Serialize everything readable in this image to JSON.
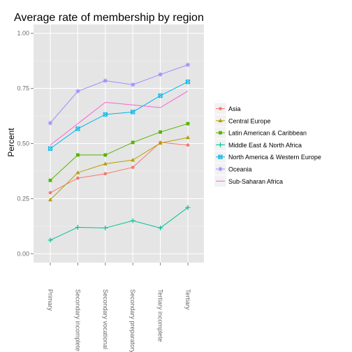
{
  "chart_data": {
    "type": "line",
    "title": "Average rate of membership by region",
    "xlabel": "",
    "ylabel": "Percent",
    "categories": [
      "Primary",
      "Secondary incomplete",
      "Secondary vocational",
      "Secondary preparatory",
      "Tertiary incomplete",
      "Tertiary"
    ],
    "ylim": [
      -0.04,
      1.04
    ],
    "yticks": [
      0.0,
      0.25,
      0.5,
      0.75,
      1.0
    ],
    "ytick_labels": [
      "0.00",
      "0.25",
      "0.50",
      "0.75",
      "1.00"
    ],
    "grid": true,
    "legend_position": "right",
    "series": [
      {
        "name": "Asia",
        "color": "#F8766D",
        "marker": "circle",
        "values": [
          0.277,
          0.343,
          0.363,
          0.392,
          0.505,
          0.493
        ]
      },
      {
        "name": "Central Europe",
        "color": "#B79F00",
        "marker": "triangle",
        "values": [
          0.245,
          0.368,
          0.408,
          0.425,
          0.502,
          0.527
        ]
      },
      {
        "name": "Latin American & Caribbean",
        "color": "#53B400",
        "marker": "square",
        "values": [
          0.333,
          0.448,
          0.448,
          0.505,
          0.552,
          0.59
        ]
      },
      {
        "name": "Middle East & North Africa",
        "color": "#00C094",
        "marker": "plus",
        "values": [
          0.062,
          0.12,
          0.117,
          0.15,
          0.117,
          0.21
        ]
      },
      {
        "name": "North America & Western Europe",
        "color": "#00B6EB",
        "marker": "squarecross",
        "values": [
          0.477,
          0.567,
          0.632,
          0.643,
          0.717,
          0.78
        ]
      },
      {
        "name": "Oceania",
        "color": "#A58AFF",
        "marker": "asterisk",
        "values": [
          0.593,
          0.737,
          0.785,
          0.767,
          0.813,
          0.857
        ]
      },
      {
        "name": "Sub-Saharan Africa",
        "color": "#FB61D7",
        "marker": "none",
        "values": [
          0.493,
          0.59,
          0.687,
          0.675,
          0.663,
          0.738
        ]
      }
    ]
  }
}
